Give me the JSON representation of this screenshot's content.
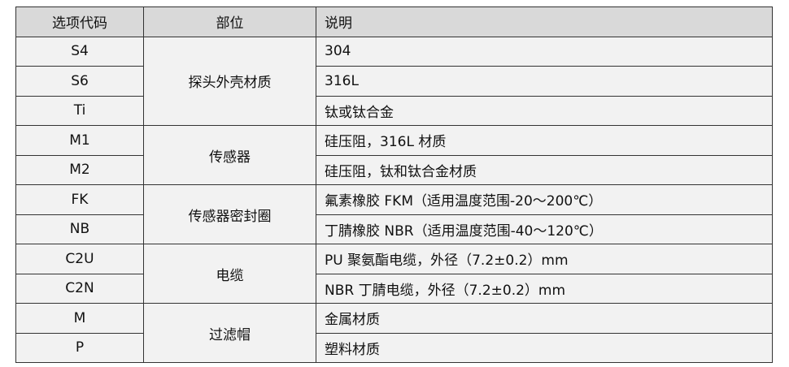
{
  "headers": [
    "选项代码",
    "部位",
    "说明"
  ],
  "groups": [
    {
      "part": "探头外壳材质",
      "rows": [
        {
          "code": "S4",
          "desc": "304"
        },
        {
          "code": "S6",
          "desc": "316L"
        },
        {
          "code": "Ti",
          "desc": "钛或钛合金"
        }
      ]
    },
    {
      "part": "传感器",
      "rows": [
        {
          "code": "M1",
          "desc": "硅压阻，316L 材质"
        },
        {
          "code": "M2",
          "desc": "硅压阻，钛和钛合金材质"
        }
      ]
    },
    {
      "part": "传感器密封圈",
      "rows": [
        {
          "code": "FK",
          "desc": "氟素橡胶 FKM（适用温度范围-20～200℃）"
        },
        {
          "code": "NB",
          "desc": "丁腈橡胶 NBR（适用温度范围-40～120℃）"
        }
      ]
    },
    {
      "part": "电缆",
      "rows": [
        {
          "code": "C2U",
          "desc": "PU 聚氨酯电缆，外径（7.2±0.2）mm"
        },
        {
          "code": "C2N",
          "desc": "NBR 丁腈电缆，外径（7.2±0.2）mm"
        }
      ]
    },
    {
      "part": "过滤帽",
      "rows": [
        {
          "code": "M",
          "desc": "金属材质"
        },
        {
          "code": "P",
          "desc": "塑料材质"
        }
      ]
    }
  ]
}
